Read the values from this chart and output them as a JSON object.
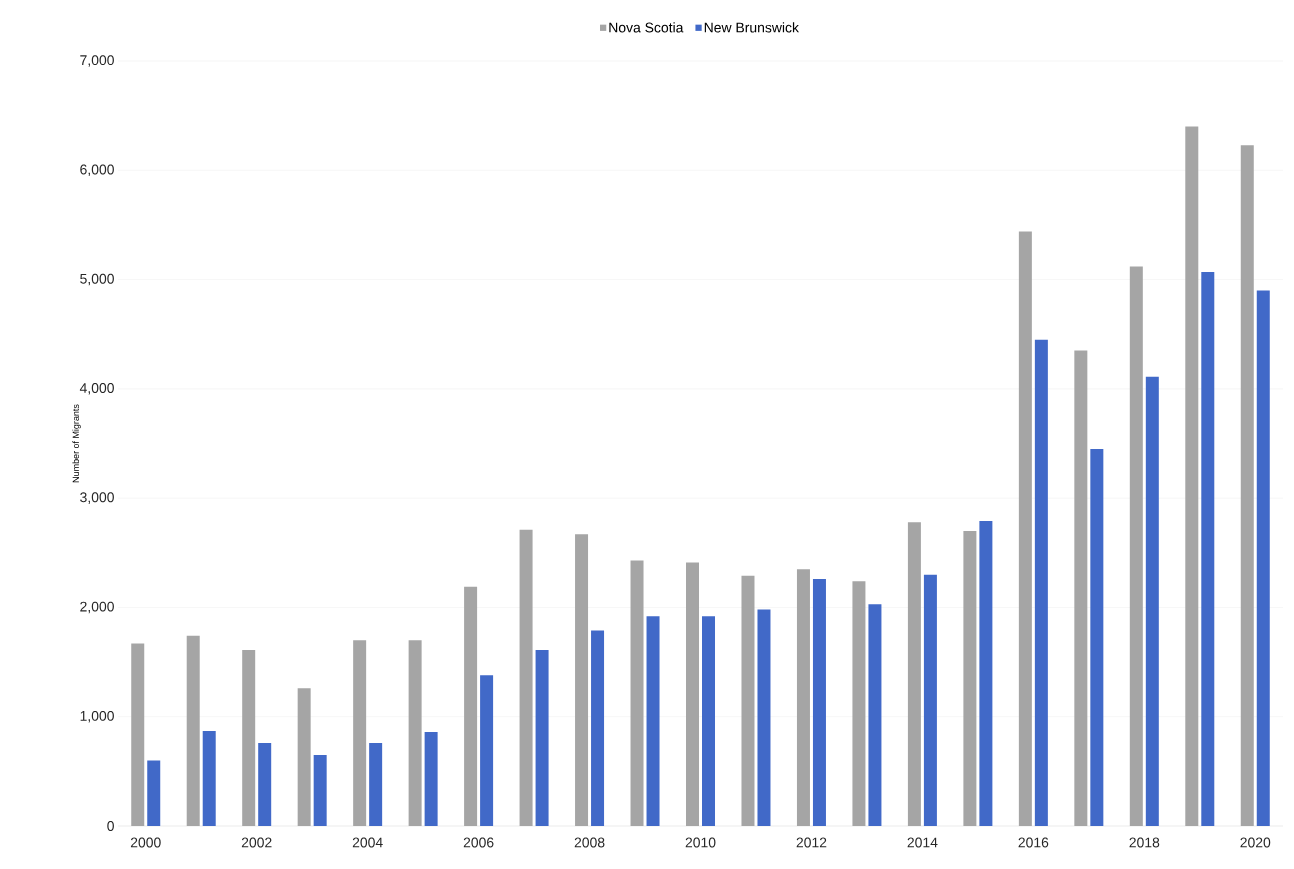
{
  "chart_data": {
    "type": "bar",
    "ylabel": "Number of Migrants",
    "categories": [
      "2000",
      null,
      "2002",
      null,
      "2004",
      null,
      "2006",
      null,
      "2008",
      null,
      "2010",
      null,
      "2012",
      null,
      "2014",
      null,
      "2016",
      null,
      "2018",
      null,
      "2020"
    ],
    "series": [
      {
        "name": "Nova Scotia",
        "color": "#a5a5a5",
        "values": [
          1670,
          1740,
          1610,
          1260,
          1700,
          1700,
          2190,
          2710,
          2670,
          2430,
          2410,
          2290,
          2350,
          2240,
          2780,
          2700,
          5440,
          4350,
          5120,
          6400,
          6230
        ]
      },
      {
        "name": "New Brunswick",
        "color": "#4169c8",
        "values": [
          600,
          870,
          760,
          650,
          760,
          860,
          1380,
          1610,
          1790,
          1920,
          1920,
          1980,
          2260,
          2030,
          2300,
          2790,
          4450,
          3450,
          4110,
          5070,
          4900
        ]
      }
    ],
    "ylim": [
      0,
      7000
    ],
    "yticks": [
      0,
      {
        "value": 1000,
        "label": "1,000"
      },
      {
        "value": 2000,
        "label": "2,000"
      },
      {
        "value": 3000,
        "label": "3,000"
      },
      {
        "value": 4000,
        "label": "4,000"
      },
      {
        "value": 5000,
        "label": "5,000"
      },
      {
        "value": 6000,
        "label": "6,000"
      },
      {
        "value": 7000,
        "label": "7,000"
      }
    ],
    "grid": "y",
    "legend": "top"
  }
}
